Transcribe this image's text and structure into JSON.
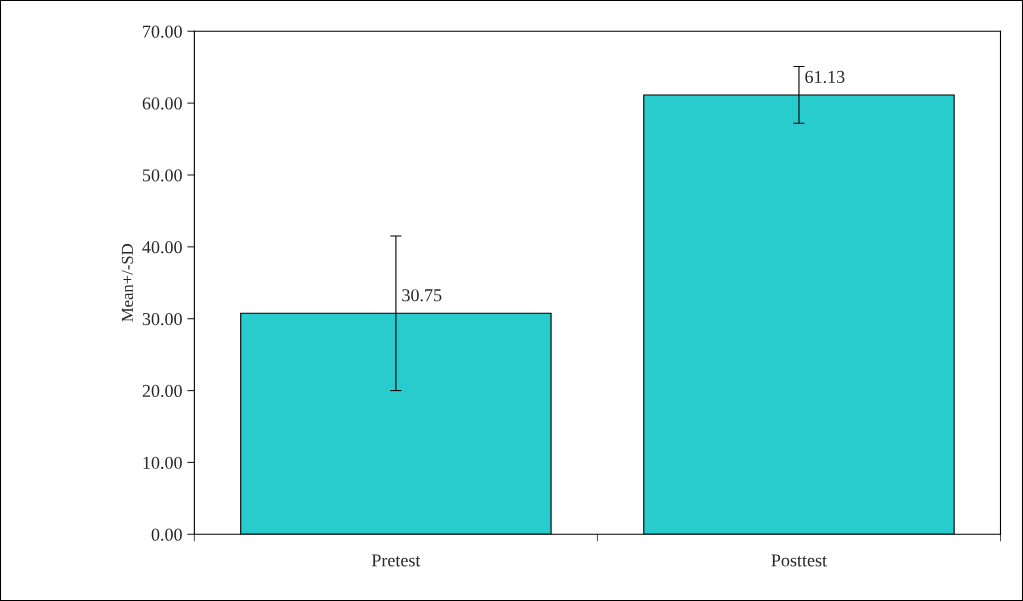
{
  "chart_data": {
    "type": "bar",
    "ylabel": "Mean+/-SD",
    "categories": [
      "Pretest",
      "Posttest"
    ],
    "values": [
      30.75,
      61.13
    ],
    "errors": [
      [
        20.0,
        41.5
      ],
      [
        57.2,
        65.1
      ]
    ],
    "color": "#29cccc",
    "data_labels": true,
    "ylim": [
      0,
      70
    ],
    "yticks": [
      {
        "value": 0,
        "label": "0.00"
      },
      {
        "value": 10,
        "label": "10.00"
      },
      {
        "value": 20,
        "label": "20.00"
      },
      {
        "value": 30,
        "label": "30.00"
      },
      {
        "value": 40,
        "label": "40.00"
      },
      {
        "value": 50,
        "label": "50.00"
      },
      {
        "value": 60,
        "label": "60.00"
      },
      {
        "value": 70,
        "label": "70.00"
      }
    ],
    "grid": false,
    "legend": false
  }
}
